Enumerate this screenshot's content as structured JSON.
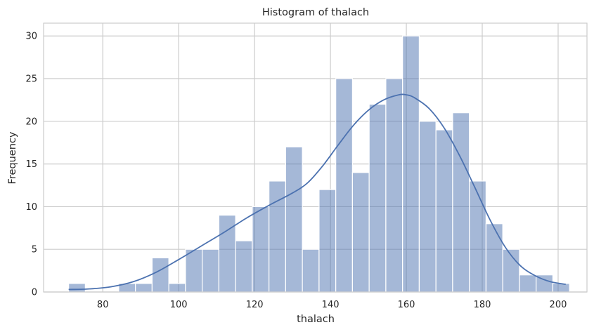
{
  "chart_data": {
    "type": "bar",
    "title": "Histogram of thalach",
    "xlabel": "thalach",
    "ylabel": "Frequency",
    "xlim": [
      64.4,
      207.6
    ],
    "ylim": [
      0,
      31.5
    ],
    "x_ticks": [
      80,
      100,
      120,
      140,
      160,
      180,
      200
    ],
    "y_ticks": [
      0,
      5,
      10,
      15,
      20,
      25,
      30
    ],
    "grid": true,
    "bin_edges": [
      71,
      75.4,
      79.8,
      84.2,
      88.6,
      93,
      97.4,
      101.8,
      106.2,
      110.6,
      115,
      119.4,
      123.8,
      128.2,
      132.6,
      137,
      141.4,
      145.8,
      150.2,
      154.6,
      159,
      163.4,
      167.8,
      172.2,
      176.6,
      181,
      185.4,
      189.8,
      194.2,
      198.6,
      203
    ],
    "counts": [
      1,
      0,
      0,
      1,
      1,
      4,
      1,
      5,
      5,
      9,
      6,
      10,
      13,
      17,
      5,
      12,
      25,
      14,
      22,
      25,
      30,
      20,
      19,
      21,
      13,
      8,
      5,
      2,
      2,
      1
    ],
    "kde": {
      "x": [
        71,
        76,
        82,
        88,
        94,
        100,
        106,
        112,
        118,
        124,
        130,
        134,
        138,
        142,
        146,
        150,
        154,
        158,
        160,
        162,
        166,
        170,
        174,
        178,
        182,
        186,
        190,
        194,
        198,
        202
      ],
      "y": [
        0.3,
        0.35,
        0.6,
        1.2,
        2.3,
        3.8,
        5.4,
        7.0,
        8.7,
        10.2,
        11.6,
        12.8,
        14.8,
        17.2,
        19.5,
        21.3,
        22.5,
        23.1,
        23.1,
        22.8,
        21.5,
        19.2,
        16.0,
        12.3,
        8.5,
        5.3,
        3.1,
        1.9,
        1.2,
        0.9
      ]
    },
    "colors": {
      "bar": "#4c72b0",
      "line": "#4c72b0",
      "grid": "#cccccc"
    }
  }
}
